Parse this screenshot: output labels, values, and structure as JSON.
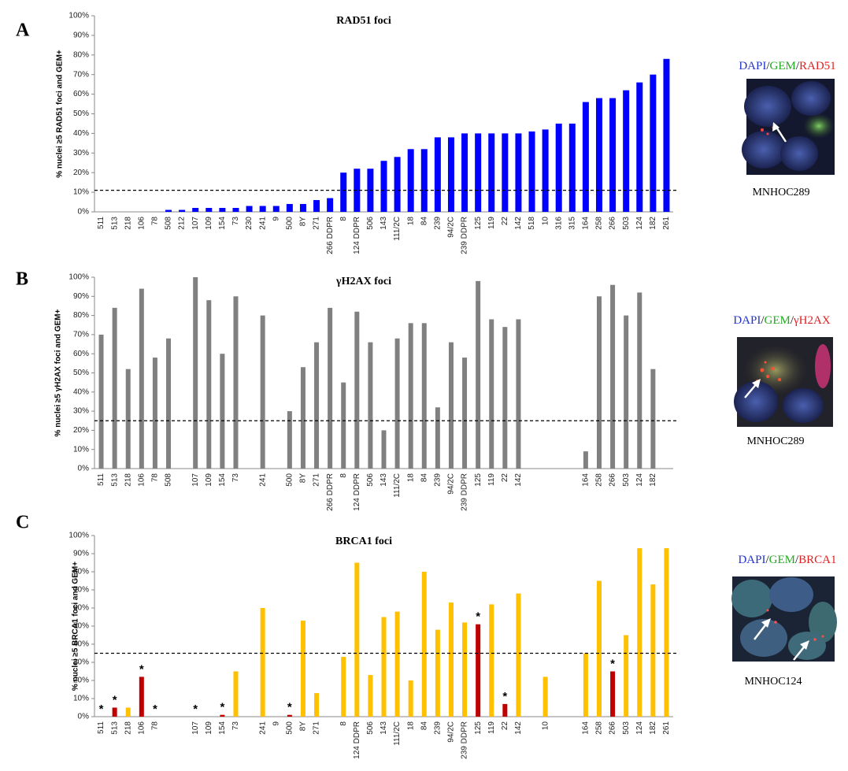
{
  "chart_data": [
    {
      "type": "bar",
      "title": "RAD51 foci",
      "ylabel": "% nuclei ≥5 RAD51 foci and GEM+",
      "categories": [
        "511",
        "513",
        "218",
        "106",
        "78",
        "508",
        "212",
        "107",
        "109",
        "154",
        "73",
        "230",
        "241",
        "9",
        "500",
        "8Y",
        "271",
        "266 DDPR",
        "8",
        "124 DDPR",
        "506",
        "143",
        "111/2C",
        "18",
        "84",
        "239",
        "94/2C",
        "239 DDPR",
        "125",
        "119",
        "22",
        "142",
        "518",
        "10",
        "316",
        "315",
        "164",
        "258",
        "266",
        "503",
        "124",
        "182",
        "261"
      ],
      "values": [
        0,
        0,
        0,
        0,
        0,
        1,
        1,
        2,
        2,
        2,
        2,
        3,
        3,
        3,
        4,
        4,
        6,
        7,
        20,
        22,
        22,
        26,
        28,
        32,
        32,
        38,
        38,
        40,
        40,
        40,
        40,
        40,
        41,
        42,
        45,
        45,
        56,
        58,
        58,
        62,
        66,
        70,
        78
      ],
      "color": "#0000ff",
      "threshold": 11,
      "ylim": [
        0,
        100
      ],
      "yticks": [
        {
          "value": 0,
          "label": "0%"
        },
        {
          "value": 10,
          "label": "10%"
        },
        {
          "value": 20,
          "label": "20%"
        },
        {
          "value": 30,
          "label": "30%"
        },
        {
          "value": 40,
          "label": "40%"
        },
        {
          "value": 50,
          "label": "50%"
        },
        {
          "value": 60,
          "label": "60%"
        },
        {
          "value": 70,
          "label": "70%"
        },
        {
          "value": 80,
          "label": "80%"
        },
        {
          "value": 90,
          "label": "90%"
        },
        {
          "value": 100,
          "label": "100%"
        }
      ]
    },
    {
      "type": "bar",
      "title": "γH2AX foci",
      "ylabel": "% nuclei ≥5 γH2AX foci and GEM+",
      "categories": [
        "511",
        "513",
        "218",
        "106",
        "78",
        "508",
        null,
        "107",
        "109",
        "154",
        "73",
        null,
        "241",
        null,
        "500",
        "8Y",
        "271",
        "266 DDPR",
        "8",
        "124 DDPR",
        "506",
        "143",
        "111/2C",
        "18",
        "84",
        "239",
        "94/2C",
        "239 DDPR",
        "125",
        "119",
        "22",
        "142",
        null,
        null,
        null,
        null,
        "164",
        "258",
        "266",
        "503",
        "124",
        "182",
        null
      ],
      "values": [
        70,
        84,
        52,
        94,
        58,
        68,
        null,
        100,
        88,
        60,
        90,
        null,
        80,
        null,
        30,
        53,
        66,
        84,
        45,
        82,
        66,
        20,
        68,
        76,
        76,
        32,
        66,
        58,
        98,
        78,
        74,
        78,
        null,
        null,
        null,
        null,
        9,
        90,
        96,
        80,
        92,
        52,
        null
      ],
      "color": "#808080",
      "threshold": 25,
      "ylim": [
        0,
        100
      ],
      "yticks": [
        {
          "value": 0,
          "label": "0%"
        },
        {
          "value": 10,
          "label": "10%"
        },
        {
          "value": 20,
          "label": "20%"
        },
        {
          "value": 30,
          "label": "30%"
        },
        {
          "value": 40,
          "label": "40%"
        },
        {
          "value": 50,
          "label": "50%"
        },
        {
          "value": 60,
          "label": "60%"
        },
        {
          "value": 70,
          "label": "70%"
        },
        {
          "value": 80,
          "label": "80%"
        },
        {
          "value": 90,
          "label": "90%"
        },
        {
          "value": 100,
          "label": "100%"
        }
      ]
    },
    {
      "type": "bar",
      "title": "BRCA1 foci",
      "ylabel": "% nuclei ≥5 BRCA1 foci and GEM+",
      "categories": [
        "511",
        "513",
        "218",
        "106",
        "78",
        null,
        null,
        "107",
        "109",
        "154",
        "73",
        null,
        "241",
        "9",
        "500",
        "8Y",
        "271",
        null,
        "8",
        "124 DDPR",
        "506",
        "143",
        "111/2C",
        "18",
        "84",
        "239",
        "94/2C",
        "239 DDPR",
        "125",
        "119",
        "22",
        "142",
        null,
        "10",
        null,
        null,
        "164",
        "258",
        "266",
        "503",
        "124",
        "182",
        "261"
      ],
      "values": [
        0,
        5,
        5,
        22,
        0,
        null,
        null,
        0,
        0,
        1,
        25,
        null,
        60,
        0,
        1,
        53,
        13,
        null,
        33,
        85,
        23,
        55,
        58,
        20,
        80,
        48,
        63,
        52,
        51,
        62,
        7,
        68,
        null,
        22,
        null,
        null,
        35,
        75,
        25,
        45,
        93,
        73,
        93
      ],
      "colors": [
        "#c00000",
        "#c00000",
        "#ffc000",
        "#c00000",
        "#c00000",
        null,
        null,
        "#c00000",
        "#ffc000",
        "#c00000",
        "#ffc000",
        null,
        "#ffc000",
        "#ffc000",
        "#c00000",
        "#ffc000",
        "#ffc000",
        null,
        "#ffc000",
        "#ffc000",
        "#ffc000",
        "#ffc000",
        "#ffc000",
        "#ffc000",
        "#ffc000",
        "#ffc000",
        "#ffc000",
        "#ffc000",
        "#c00000",
        "#ffc000",
        "#c00000",
        "#ffc000",
        null,
        "#ffc000",
        null,
        null,
        "#ffc000",
        "#ffc000",
        "#c00000",
        "#ffc000",
        "#ffc000",
        "#ffc000",
        "#ffc000"
      ],
      "markers": [
        "*",
        "*",
        null,
        "*",
        "*",
        null,
        null,
        "*",
        null,
        "*",
        null,
        null,
        null,
        null,
        "*",
        null,
        null,
        null,
        null,
        null,
        null,
        null,
        null,
        null,
        null,
        null,
        null,
        null,
        "*",
        null,
        "*",
        null,
        null,
        null,
        null,
        null,
        null,
        null,
        "*",
        null,
        null,
        null,
        null
      ],
      "threshold": 35,
      "ylim": [
        0,
        100
      ],
      "yticks": [
        {
          "value": 0,
          "label": "0%"
        },
        {
          "value": 10,
          "label": "10%"
        },
        {
          "value": 20,
          "label": "20%"
        },
        {
          "value": 30,
          "label": "30%"
        },
        {
          "value": 40,
          "label": "40%"
        },
        {
          "value": 50,
          "label": "50%"
        },
        {
          "value": 60,
          "label": "60%"
        },
        {
          "value": 70,
          "label": "70%"
        },
        {
          "value": 80,
          "label": "80%"
        },
        {
          "value": 90,
          "label": "90%"
        },
        {
          "value": 100,
          "label": "100%"
        }
      ]
    }
  ],
  "panels": [
    {
      "letter": "A",
      "stain": [
        "DAPI",
        "/",
        "GEM",
        "/",
        "RAD51"
      ],
      "sample": "MNHOC289"
    },
    {
      "letter": "B",
      "stain": [
        "DAPI",
        "/",
        "GEM",
        "/",
        "γH2AX"
      ],
      "sample": "MNHOC289"
    },
    {
      "letter": "C",
      "stain": [
        "DAPI",
        "/",
        "GEM",
        "/",
        "BRCA1"
      ],
      "sample": "MNHOC124"
    }
  ]
}
